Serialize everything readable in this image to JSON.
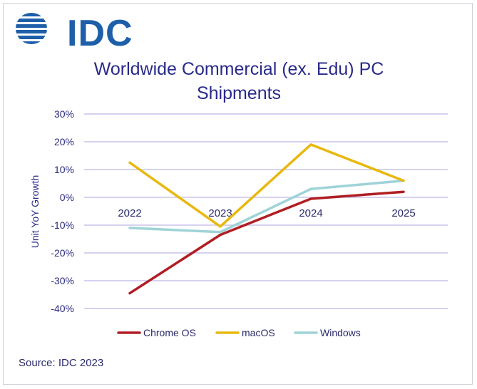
{
  "logo": {
    "text": "IDC"
  },
  "chart_data": {
    "type": "line",
    "title_lines": [
      "Worldwide Commercial (ex. Edu) PC",
      "Shipments"
    ],
    "ylabel": "Unit YoY Growth",
    "xlabel": "",
    "categories": [
      "2022",
      "2023",
      "2024",
      "2025"
    ],
    "ylim": [
      -40,
      30
    ],
    "yticks": [
      30,
      20,
      10,
      0,
      -10,
      -20,
      -30,
      -40
    ],
    "ytick_labels": [
      "30%",
      "20%",
      "10%",
      "0%",
      "-10%",
      "-20%",
      "-30%",
      "-40%"
    ],
    "grid": true,
    "legend_position": "bottom",
    "series": [
      {
        "name": "Chrome OS",
        "color": "#b01e23",
        "values": [
          -34.5,
          -13.5,
          -0.5,
          2
        ]
      },
      {
        "name": "macOS",
        "color": "#e8b810",
        "values": [
          12.5,
          -10.5,
          19,
          6
        ]
      },
      {
        "name": "Windows",
        "color": "#9fd3d8",
        "values": [
          -11,
          -12.5,
          3,
          6
        ]
      }
    ]
  },
  "source": "Source: IDC 2023"
}
